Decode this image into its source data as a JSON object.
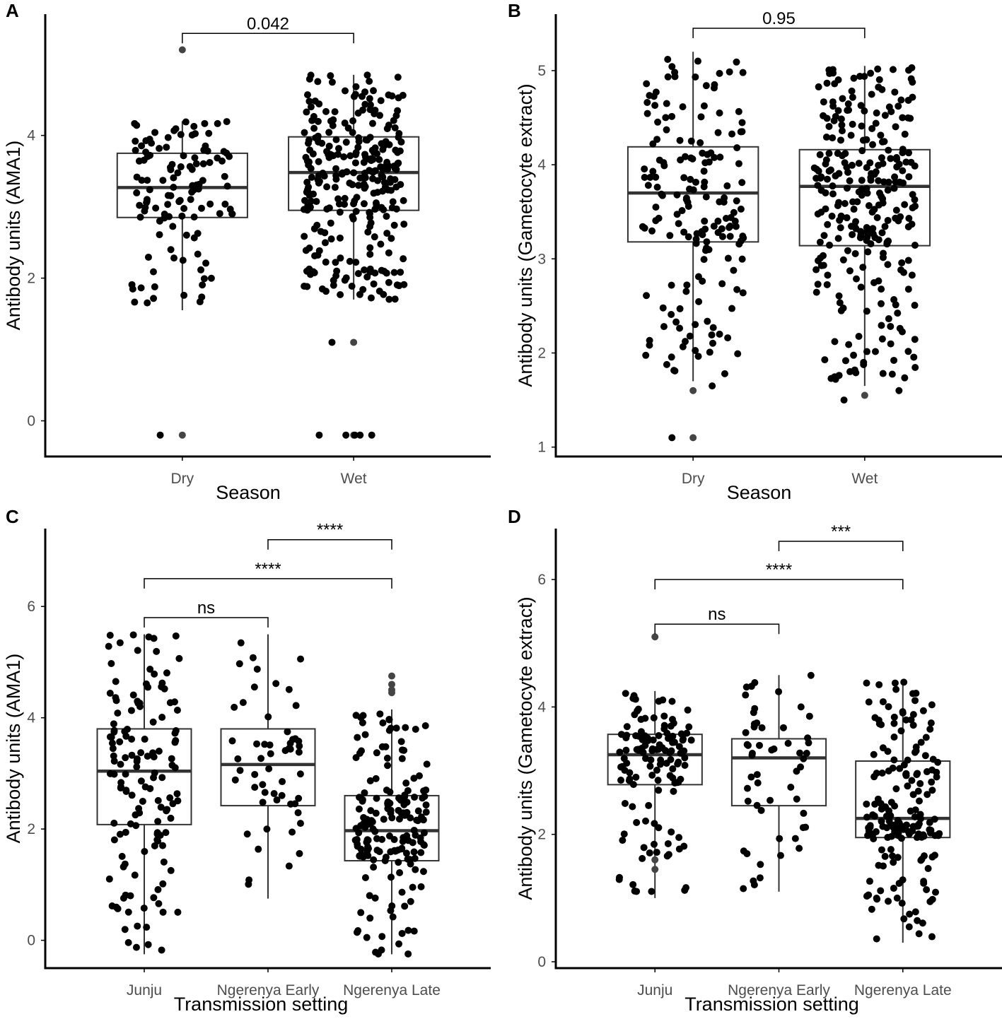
{
  "colors": {
    "point": "#000000",
    "outlier": "#444444",
    "box_line": "#333333",
    "axis": "#000000",
    "tick_text": "#4d4d4d"
  },
  "chart_data": [
    {
      "panel": "A",
      "type": "boxplot",
      "xlabel": "Season",
      "ylabel": "Antibody units (AMA1)",
      "ylim": [
        -0.5,
        5.7
      ],
      "yticks": [
        "0",
        "2",
        "4"
      ],
      "categories": [
        "Dry",
        "Wet"
      ],
      "boxes": [
        {
          "category": "Dry",
          "min": 1.55,
          "q1": 2.85,
          "median": 3.27,
          "q3": 3.75,
          "max": 4.2,
          "outliers": [
            -0.2,
            5.2
          ],
          "n": 120,
          "seed": 11
        },
        {
          "category": "Wet",
          "min": 1.7,
          "q1": 2.95,
          "median": 3.48,
          "q3": 3.98,
          "max": 4.85,
          "outliers": [
            1.1,
            -0.2
          ],
          "n": 290,
          "seed": 23
        }
      ],
      "extra_points": [
        {
          "category": "Dry",
          "values": [
            -0.2
          ]
        },
        {
          "category": "Wet",
          "values": [
            1.1,
            -0.2,
            -0.2,
            -0.2,
            -0.2,
            -0.2
          ]
        }
      ],
      "comparisons": [
        {
          "from": "Dry",
          "to": "Wet",
          "label": "0.042",
          "y": 5.43
        }
      ]
    },
    {
      "panel": "B",
      "type": "boxplot",
      "xlabel": "Season",
      "ylabel": "Antibody units (Gametocyte extract)",
      "ylim": [
        0.9,
        5.6
      ],
      "yticks": [
        "1",
        "2",
        "3",
        "4",
        "5"
      ],
      "categories": [
        "Dry",
        "Wet"
      ],
      "boxes": [
        {
          "category": "Dry",
          "min": 1.7,
          "q1": 3.18,
          "median": 3.7,
          "q3": 4.19,
          "max": 5.2,
          "outliers": [
            1.6,
            1.1
          ],
          "n": 170,
          "seed": 37
        },
        {
          "category": "Wet",
          "min": 1.65,
          "q1": 3.14,
          "median": 3.77,
          "q3": 4.16,
          "max": 5.05,
          "outliers": [
            1.55
          ],
          "n": 280,
          "seed": 41
        }
      ],
      "extra_points": [
        {
          "category": "Dry",
          "values": [
            1.1,
            1.65
          ]
        },
        {
          "category": "Wet",
          "values": [
            1.5,
            1.6
          ]
        }
      ],
      "comparisons": [
        {
          "from": "Dry",
          "to": "Wet",
          "label": "0.95",
          "y": 5.45
        }
      ]
    },
    {
      "panel": "C",
      "type": "boxplot",
      "xlabel": "Transmission setting",
      "ylabel": "Antibody units (AMA1)",
      "ylim": [
        -0.5,
        7.4
      ],
      "yticks": [
        "0",
        "2",
        "4",
        "6"
      ],
      "categories": [
        "Junju",
        "Ngerenya Early",
        "Ngerenya Late"
      ],
      "boxes": [
        {
          "category": "Junju",
          "min": -0.25,
          "q1": 2.08,
          "median": 3.04,
          "q3": 3.8,
          "max": 5.5,
          "outliers": [],
          "n": 140,
          "seed": 53
        },
        {
          "category": "Ngerenya Early",
          "min": 0.75,
          "q1": 2.42,
          "median": 3.16,
          "q3": 3.8,
          "max": 5.5,
          "outliers": [],
          "n": 55,
          "seed": 61
        },
        {
          "category": "Ngerenya Late",
          "min": -0.25,
          "q1": 1.43,
          "median": 1.97,
          "q3": 2.6,
          "max": 4.15,
          "outliers": [
            4.75,
            4.6,
            4.5,
            4.45
          ],
          "n": 180,
          "seed": 71
        }
      ],
      "extra_points": [],
      "comparisons": [
        {
          "from": "Junju",
          "to": "Ngerenya Early",
          "label": "ns",
          "y": 5.8
        },
        {
          "from": "Junju",
          "to": "Ngerenya Late",
          "label": "****",
          "y": 6.5
        },
        {
          "from": "Ngerenya Early",
          "to": "Ngerenya Late",
          "label": "****",
          "y": 7.2
        }
      ]
    },
    {
      "panel": "D",
      "type": "boxplot",
      "xlabel": "Transmission setting",
      "ylabel": "Antibody units (Gametocyte extract)",
      "ylim": [
        -0.1,
        6.8
      ],
      "yticks": [
        "0",
        "2",
        "4",
        "6"
      ],
      "categories": [
        "Junju",
        "Ngerenya Early",
        "Ngerenya Late"
      ],
      "boxes": [
        {
          "category": "Junju",
          "min": 1.0,
          "q1": 2.78,
          "median": 3.25,
          "q3": 3.57,
          "max": 4.25,
          "outliers": [
            5.1,
            1.6,
            1.45
          ],
          "n": 130,
          "seed": 83
        },
        {
          "category": "Ngerenya Early",
          "min": 1.1,
          "q1": 2.45,
          "median": 3.2,
          "q3": 3.5,
          "max": 4.5,
          "outliers": [],
          "n": 55,
          "seed": 97
        },
        {
          "category": "Ngerenya Late",
          "min": 0.3,
          "q1": 1.95,
          "median": 2.25,
          "q3": 3.15,
          "max": 4.4,
          "outliers": [],
          "n": 180,
          "seed": 101
        }
      ],
      "extra_points": [],
      "comparisons": [
        {
          "from": "Junju",
          "to": "Ngerenya Early",
          "label": "ns",
          "y": 5.3
        },
        {
          "from": "Junju",
          "to": "Ngerenya Late",
          "label": "****",
          "y": 6.0
        },
        {
          "from": "Ngerenya Early",
          "to": "Ngerenya Late",
          "label": "***",
          "y": 6.6
        }
      ]
    }
  ]
}
